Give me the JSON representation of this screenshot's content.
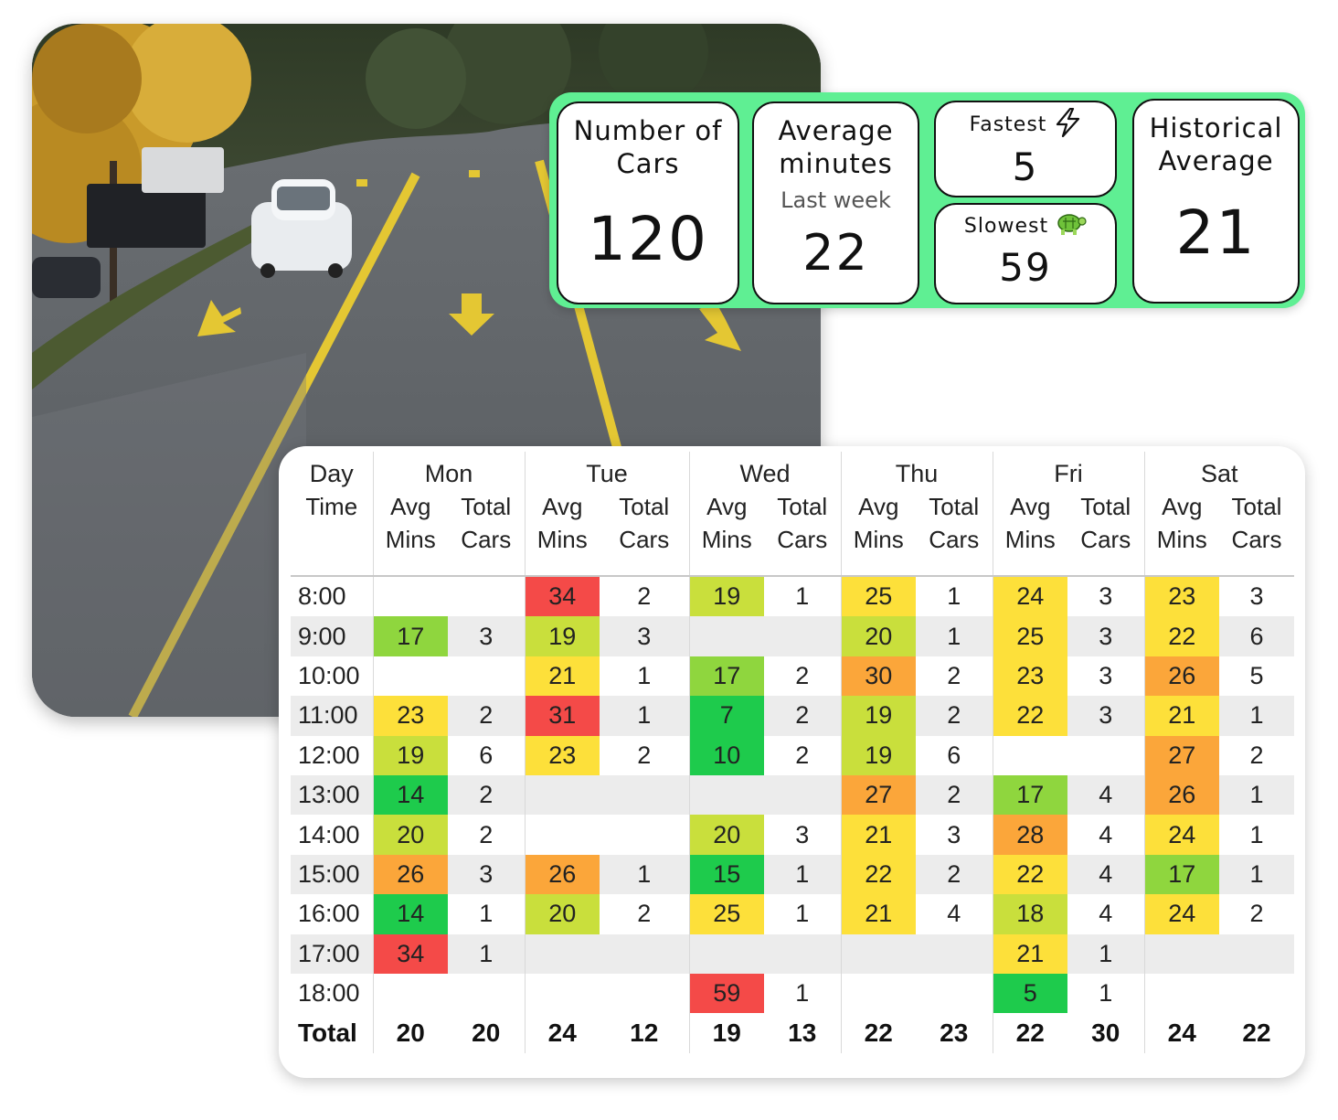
{
  "kpi": {
    "cars": {
      "label_line1": "Number of",
      "label_line2": "Cars",
      "value": "120"
    },
    "avg": {
      "label_line1": "Average",
      "label_line2": "minutes",
      "sub": "Last week",
      "value": "22"
    },
    "fastest": {
      "label": "Fastest",
      "value": "5",
      "icon": "lightning-icon"
    },
    "slowest": {
      "label": "Slowest",
      "value": "59",
      "icon": "turtle-icon"
    },
    "historical": {
      "label_line1": "Historical",
      "label_line2": "Average",
      "value": "21"
    }
  },
  "table": {
    "corner_top": "Day",
    "corner_bottom": "Time",
    "sub_avg": [
      "Avg",
      "Mins"
    ],
    "sub_total": [
      "Total",
      "Cars"
    ],
    "days": [
      "Mon",
      "Tue",
      "Wed",
      "Thu",
      "Fri",
      "Sat"
    ],
    "rows": [
      {
        "time": "8:00",
        "cells": [
          "",
          "",
          "34",
          "2",
          "19",
          "1",
          "25",
          "1",
          "24",
          "3",
          "23",
          "3"
        ]
      },
      {
        "time": "9:00",
        "cells": [
          "17",
          "3",
          "19",
          "3",
          "",
          "",
          "20",
          "1",
          "25",
          "3",
          "22",
          "6"
        ]
      },
      {
        "time": "10:00",
        "cells": [
          "",
          "",
          "21",
          "1",
          "17",
          "2",
          "30",
          "2",
          "23",
          "3",
          "26",
          "5"
        ]
      },
      {
        "time": "11:00",
        "cells": [
          "23",
          "2",
          "31",
          "1",
          "7",
          "2",
          "19",
          "2",
          "22",
          "3",
          "21",
          "1"
        ]
      },
      {
        "time": "12:00",
        "cells": [
          "19",
          "6",
          "23",
          "2",
          "10",
          "2",
          "19",
          "6",
          "",
          "",
          "27",
          "2"
        ]
      },
      {
        "time": "13:00",
        "cells": [
          "14",
          "2",
          "",
          "",
          "",
          "",
          "27",
          "2",
          "17",
          "4",
          "26",
          "1"
        ]
      },
      {
        "time": "14:00",
        "cells": [
          "20",
          "2",
          "",
          "",
          "20",
          "3",
          "21",
          "3",
          "28",
          "4",
          "24",
          "1"
        ]
      },
      {
        "time": "15:00",
        "cells": [
          "26",
          "3",
          "26",
          "1",
          "15",
          "1",
          "22",
          "2",
          "22",
          "4",
          "17",
          "1"
        ]
      },
      {
        "time": "16:00",
        "cells": [
          "14",
          "1",
          "20",
          "2",
          "25",
          "1",
          "21",
          "4",
          "18",
          "4",
          "24",
          "2"
        ]
      },
      {
        "time": "17:00",
        "cells": [
          "34",
          "1",
          "",
          "",
          "",
          "",
          "",
          "",
          "21",
          "1",
          "",
          ""
        ]
      },
      {
        "time": "18:00",
        "cells": [
          "",
          "",
          "",
          "",
          "59",
          "1",
          "",
          "",
          "5",
          "1",
          "",
          ""
        ]
      }
    ],
    "total_label": "Total",
    "totals": [
      "20",
      "20",
      "24",
      "12",
      "19",
      "13",
      "22",
      "23",
      "22",
      "30",
      "24",
      "22"
    ]
  },
  "colors": {
    "panel": "#5fef93",
    "heat_green": "#1ecb4c",
    "heat_lime": "#8fd63e",
    "heat_yellowgreen": "#c9df3c",
    "heat_yellow": "#fde03a",
    "heat_orange": "#fba63a",
    "heat_red": "#f44a48"
  }
}
